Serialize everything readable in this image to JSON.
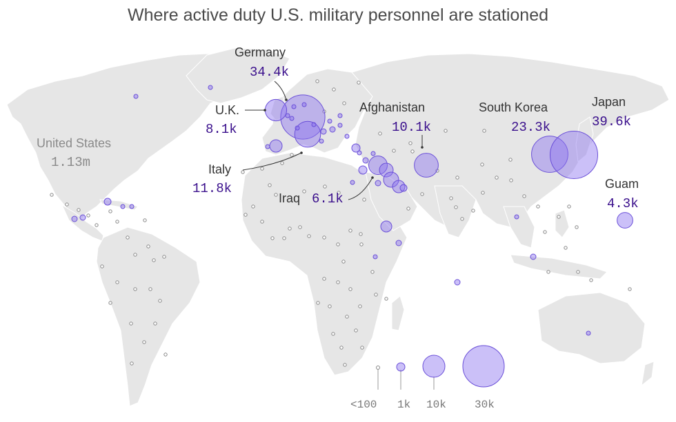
{
  "title": "Where active duty U.S. military personnel are stationed",
  "colors": {
    "land": "#e6e6e6",
    "bubble_fill": "#8b73f0",
    "bubble_stroke": "#6a4fd8",
    "value_text": "#3a0f8c",
    "us_text": "#8a8a8a"
  },
  "annotations": [
    {
      "id": "germany",
      "name": "Germany",
      "value": "34.4k",
      "personnel": 34400
    },
    {
      "id": "uk",
      "name": "U.K.",
      "value": "8.1k",
      "personnel": 8100
    },
    {
      "id": "italy",
      "name": "Italy",
      "value": "11.8k",
      "personnel": 11800
    },
    {
      "id": "afghanistan",
      "name": "Afghanistan",
      "value": "10.1k",
      "personnel": 10100
    },
    {
      "id": "iraq",
      "name": "Iraq",
      "value": "6.1k",
      "personnel": 6100
    },
    {
      "id": "south-korea",
      "name": "South Korea",
      "value": "23.3k",
      "personnel": 23300
    },
    {
      "id": "japan",
      "name": "Japan",
      "value": "39.6k",
      "personnel": 39600
    },
    {
      "id": "guam",
      "name": "Guam",
      "value": "4.3k",
      "personnel": 4300
    }
  ],
  "home": {
    "name": "United States",
    "value": "1.13m"
  },
  "legend": [
    {
      "label": "<100",
      "personnel": 100
    },
    {
      "label": "1k",
      "personnel": 1000
    },
    {
      "label": "10k",
      "personnel": 10000
    },
    {
      "label": "30k",
      "personnel": 30000
    }
  ]
}
